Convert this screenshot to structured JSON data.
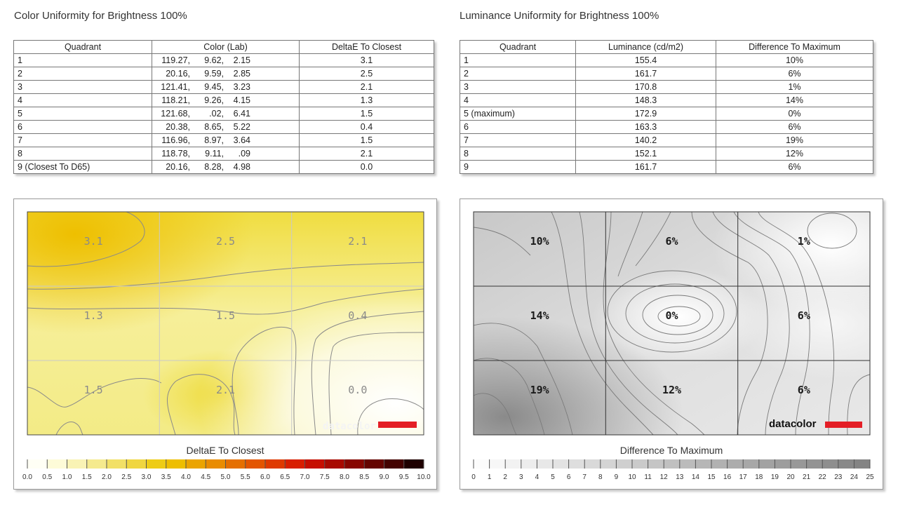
{
  "color": {
    "title": "Color Uniformity for Brightness 100%",
    "headers": [
      "Quadrant",
      "Color (Lab)",
      "DeltaE To Closest"
    ],
    "rows": [
      {
        "q": "1",
        "lab": [
          "119.27,",
          "9.62,",
          "2.15"
        ],
        "de": "3.1"
      },
      {
        "q": "2",
        "lab": [
          "20.16,",
          "9.59,",
          "2.85"
        ],
        "de": "2.5"
      },
      {
        "q": "3",
        "lab": [
          "121.41,",
          "9.45,",
          "3.23"
        ],
        "de": "2.1"
      },
      {
        "q": "4",
        "lab": [
          "118.21,",
          "9.26,",
          "4.15"
        ],
        "de": "1.3"
      },
      {
        "q": "5",
        "lab": [
          "121.68,",
          ".02,",
          "6.41"
        ],
        "de": "1.5"
      },
      {
        "q": "6",
        "lab": [
          "20.38,",
          "8.65,",
          "5.22"
        ],
        "de": "0.4"
      },
      {
        "q": "7",
        "lab": [
          "116.96,",
          "8.97,",
          "3.64"
        ],
        "de": "1.5"
      },
      {
        "q": "8",
        "lab": [
          "118.78,",
          "9.11,",
          ".09"
        ],
        "de": "2.1"
      },
      {
        "q": "9 (Closest To D65)",
        "lab": [
          "20.16,",
          "8.28,",
          "4.98"
        ],
        "de": "0.0"
      }
    ]
  },
  "luminance": {
    "title": "Luminance Uniformity for Brightness 100%",
    "headers": [
      "Quadrant",
      "Luminance (cd/m2)",
      "Difference To Maximum"
    ],
    "rows": [
      {
        "q": "1",
        "lum": "155.4",
        "diff": "10%"
      },
      {
        "q": "2",
        "lum": "161.7",
        "diff": "6%"
      },
      {
        "q": "3",
        "lum": "170.8",
        "diff": "1%"
      },
      {
        "q": "4",
        "lum": "148.3",
        "diff": "14%"
      },
      {
        "q": "5 (maximum)",
        "lum": "172.9",
        "diff": "0%"
      },
      {
        "q": "6",
        "lum": "163.3",
        "diff": "6%"
      },
      {
        "q": "7",
        "lum": "140.2",
        "diff": "19%"
      },
      {
        "q": "8",
        "lum": "152.1",
        "diff": "12%"
      },
      {
        "q": "9",
        "lum": "161.7",
        "diff": "6%"
      }
    ]
  },
  "brand": {
    "logo_text": "datacolor",
    "accent": "#e41e26"
  },
  "chart_data": [
    {
      "type": "heatmap",
      "xlabel": "DeltaE To Closest",
      "grid": "3x3",
      "cell_labels": [
        "3.1",
        "2.5",
        "2.1",
        "1.3",
        "1.5",
        "0.4",
        "1.5",
        "2.1",
        "0.0"
      ],
      "cell_values": [
        3.1,
        2.5,
        2.1,
        1.3,
        1.5,
        0.4,
        1.5,
        2.1,
        0.0
      ],
      "scale_ticks": [
        "0.0",
        "0.5",
        "1.0",
        "1.5",
        "2.0",
        "2.5",
        "3.0",
        "3.5",
        "4.0",
        "4.5",
        "5.0",
        "5.5",
        "6.0",
        "6.5",
        "7.0",
        "7.5",
        "8.0",
        "8.5",
        "9.0",
        "9.5",
        "10.0"
      ],
      "scale_colors": [
        "#fffff5",
        "#fdfbd8",
        "#f9f3b5",
        "#f5ea8e",
        "#f2e066",
        "#f0d640",
        "#eecc16",
        "#eebe00",
        "#eba400",
        "#e98c00",
        "#e56f00",
        "#e35500",
        "#df3a00",
        "#d81f00",
        "#c60f00",
        "#a80a00",
        "#870600",
        "#650400",
        "#440200",
        "#1f0000"
      ],
      "ylim": [
        0,
        10
      ]
    },
    {
      "type": "heatmap",
      "xlabel": "Difference To Maximum",
      "grid": "3x3",
      "cell_labels": [
        "10%",
        "6%",
        "1%",
        "14%",
        "0%",
        "6%",
        "19%",
        "12%",
        "6%"
      ],
      "cell_values": [
        10,
        6,
        1,
        14,
        0,
        6,
        19,
        12,
        6
      ],
      "scale_ticks": [
        "0",
        "1",
        "2",
        "3",
        "4",
        "5",
        "6",
        "7",
        "8",
        "9",
        "10",
        "11",
        "12",
        "13",
        "14",
        "15",
        "16",
        "17",
        "18",
        "19",
        "20",
        "21",
        "22",
        "23",
        "24",
        "25"
      ],
      "ylim": [
        0,
        25
      ]
    }
  ]
}
